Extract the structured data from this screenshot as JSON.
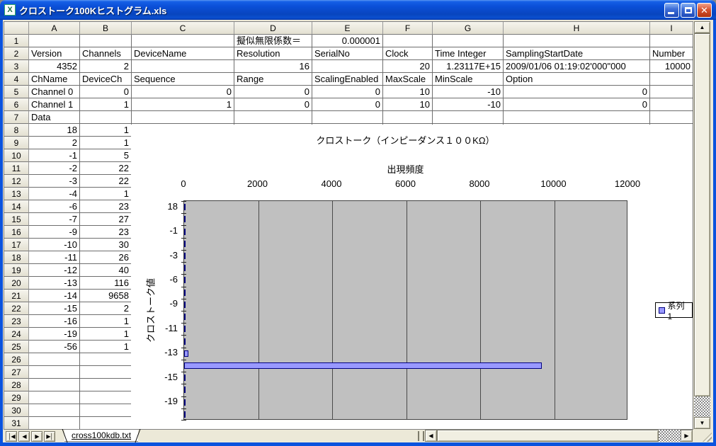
{
  "window": {
    "title": "クロストーク100Kヒストグラム.xls",
    "controls": {
      "minimize": "minimize",
      "maximize": "maximize",
      "close": "close"
    }
  },
  "icons": {
    "excel_app": "X",
    "close_glyph": "✕",
    "scroll_up": "▲",
    "scroll_down": "▼",
    "scroll_left": "◀",
    "scroll_right": "▶",
    "tab_first": "│◀",
    "tab_prev": "◀",
    "tab_next": "▶",
    "tab_last": "▶│"
  },
  "spreadsheet": {
    "column_headers": [
      "A",
      "B",
      "C",
      "D",
      "E",
      "F",
      "G",
      "H",
      "I"
    ],
    "row_count": 31,
    "rows": [
      [
        "",
        "",
        "",
        "擬似無限係数＝",
        "0.000001",
        "",
        "",
        "",
        ""
      ],
      [
        "Version",
        "Channels",
        "DeviceName",
        "Resolution",
        "SerialNo",
        "Clock",
        "Time Integer",
        "SamplingStartDate",
        "Number"
      ],
      [
        "4352",
        "2",
        "",
        "16",
        "",
        "20",
        "1.23117E+15",
        "2009/01/06 01:19:02'000\"000",
        "10000"
      ],
      [
        "ChName",
        "DeviceCh",
        "Sequence",
        "Range",
        "ScalingEnabled",
        "MaxScale",
        "MinScale",
        "Option",
        ""
      ],
      [
        "Channel 0",
        "0",
        "0",
        "0",
        "0",
        "10",
        "-10",
        "0",
        ""
      ],
      [
        "Channel 1",
        "1",
        "1",
        "0",
        "0",
        "10",
        "-10",
        "0",
        ""
      ],
      [
        "Data",
        "",
        "",
        "",
        "",
        "",
        "",
        "",
        ""
      ],
      [
        "18",
        "1"
      ],
      [
        "2",
        "1"
      ],
      [
        "-1",
        "5"
      ],
      [
        "-2",
        "22"
      ],
      [
        "-3",
        "22"
      ],
      [
        "-4",
        "1"
      ],
      [
        "-6",
        "23"
      ],
      [
        "-7",
        "27"
      ],
      [
        "-9",
        "23"
      ],
      [
        "-10",
        "30"
      ],
      [
        "-11",
        "26"
      ],
      [
        "-12",
        "40"
      ],
      [
        "-13",
        "116"
      ],
      [
        "-14",
        "9658"
      ],
      [
        "-15",
        "2"
      ],
      [
        "-16",
        "1"
      ],
      [
        "-19",
        "1"
      ],
      [
        "-56",
        "1"
      ],
      [],
      [],
      [],
      [],
      [],
      []
    ]
  },
  "tabs": {
    "active": "cross100kdb.txt"
  },
  "chart_data": {
    "type": "bar",
    "orientation": "horizontal",
    "title": "クロストーク（インピーダンス１００KΩ）",
    "xlabel": "出現頻度",
    "ylabel": "クロストーク値",
    "categories": [
      18,
      2,
      -1,
      -2,
      -3,
      -4,
      -6,
      -7,
      -9,
      -10,
      -11,
      -12,
      -13,
      -14,
      -15,
      -16,
      -19,
      -56
    ],
    "series": [
      {
        "name": "系列1",
        "values": [
          1,
          1,
          5,
          22,
          22,
          1,
          23,
          27,
          23,
          30,
          26,
          40,
          116,
          9658,
          2,
          1,
          1,
          1
        ]
      }
    ],
    "xlim": [
      0,
      12000
    ],
    "xticks": [
      0,
      2000,
      4000,
      6000,
      8000,
      10000,
      12000
    ],
    "y_tick_labels_shown": [
      18,
      -1,
      -3,
      -6,
      -9,
      -11,
      -13,
      -15,
      -19
    ],
    "legend": [
      "系列1"
    ],
    "legend_position": "right",
    "grid": "vertical",
    "colors": {
      "plot_bg": "#C0C0C0",
      "gridline": "#4a4a4a",
      "bar_fill": "#9999FF",
      "bar_border": "#000080"
    }
  }
}
